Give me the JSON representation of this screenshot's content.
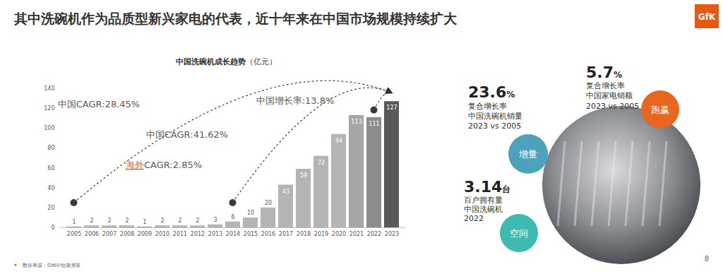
{
  "page": {
    "title": "其中洗碗机作为品质型新兴家电的代表，近十年来在中国市场规模持续扩大",
    "logo": "GfK",
    "source": "数据来源：GfK中怡康测算",
    "page_number": "8",
    "highlights": [
      {
        "value": 23.6,
        "unit": "%",
        "lines": [
          "复合增长率",
          "中国洗碗机销量",
          "2023 vs 2005"
        ],
        "badge": "增量",
        "badge_color": "#4aa3bb"
      },
      {
        "value": 5.7,
        "unit": "%",
        "lines": [
          "复合增长率",
          "中国家电销额",
          "2023 vs 2005"
        ],
        "badge": "跑赢",
        "badge_color": "#e8671e"
      },
      {
        "value": 3.14,
        "unit": "台",
        "lines": [
          "百户拥有量",
          "中国洗碗机",
          "2022"
        ],
        "badge": "空间",
        "badge_color": "#3dbbb0"
      }
    ]
  },
  "chart_data": {
    "type": "bar",
    "title": "中国洗碗机成长趋势",
    "subtitle": "（亿元）",
    "categories": [
      "2005",
      "2006",
      "2007",
      "2008",
      "2009",
      "2010",
      "2011",
      "2012",
      "2013",
      "2014",
      "2015",
      "2016",
      "2017",
      "2018",
      "2019",
      "2020",
      "2021",
      "2022",
      "2023"
    ],
    "values": [
      1,
      2,
      2,
      2,
      1,
      2,
      2,
      2,
      3,
      6,
      10,
      20,
      43,
      59,
      72,
      94,
      113,
      111,
      127
    ],
    "colors": [
      "#b4b4b4",
      "#b4b4b4",
      "#b4b4b4",
      "#b4b4b4",
      "#b4b4b4",
      "#b4b4b4",
      "#b4b4b4",
      "#b4b4b4",
      "#b4b4b4",
      "#b4b4b4",
      "#b4b4b4",
      "#b4b4b4",
      "#b4b4b4",
      "#b4b4b4",
      "#b4b4b4",
      "#b4b4b4",
      "#a6a6a6",
      "#8c8c8c",
      "#595959"
    ],
    "ylim": [
      0,
      140
    ],
    "yticks": [
      0,
      20,
      40,
      60,
      80,
      100,
      120,
      140
    ],
    "grid": false,
    "data_labels": true,
    "annotations": [
      {
        "text": "中国CAGR:28.45%",
        "from": "2005",
        "to": "2023"
      },
      {
        "text": "中国CAGR:41.62%",
        "from": "2014",
        "to": "2023"
      },
      {
        "highlight": "海外",
        "text": "CAGR:2.85%"
      },
      {
        "text": "中国增长率:13.8%",
        "from": "2022",
        "to": "2023"
      }
    ]
  }
}
